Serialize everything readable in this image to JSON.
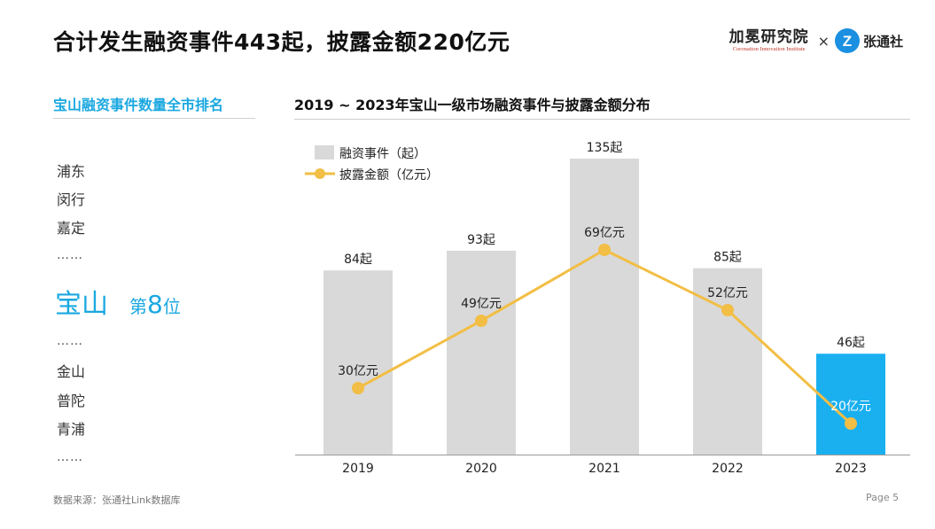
{
  "header": {
    "title": "合计发生融资事件443起，披露金额220亿元",
    "logo_cn": "加冕研究院",
    "logo_en": "Coronation Innovation Institute",
    "logo_x": "×",
    "logo_z_letter": "Z",
    "logo_z_name": "张通社"
  },
  "left_panel": {
    "title": "宝山融资事件数量全市排名",
    "top_items": [
      "浦东",
      "闵行",
      "嘉定"
    ],
    "ellipsis": "……",
    "highlight_name": "宝山",
    "highlight_prefix": "第",
    "highlight_rank": "8",
    "highlight_suffix": "位",
    "bottom_items": [
      "金山",
      "普陀",
      "青浦"
    ]
  },
  "chart_data": {
    "type": "bar",
    "title": "2019 ~ 2023年宝山一级市场融资事件与披露金额分布",
    "categories": [
      "2019",
      "2020",
      "2021",
      "2022",
      "2023"
    ],
    "series": [
      {
        "name": "融资事件（起）",
        "type": "bar",
        "values": [
          84,
          93,
          135,
          85,
          46
        ],
        "label_suffix": "起"
      },
      {
        "name": "披露金额（亿元）",
        "type": "line",
        "values": [
          30,
          49,
          69,
          52,
          20
        ],
        "label_suffix": "亿元"
      }
    ],
    "highlight_category": "2023",
    "legend_position": "top-left",
    "colors": {
      "bar": "#d9d9d9",
      "bar_highlight": "#1ab0f0",
      "line": "#f2be45"
    }
  },
  "footer": {
    "source": "数据来源：张通社Link数据库",
    "page": "Page 5"
  }
}
